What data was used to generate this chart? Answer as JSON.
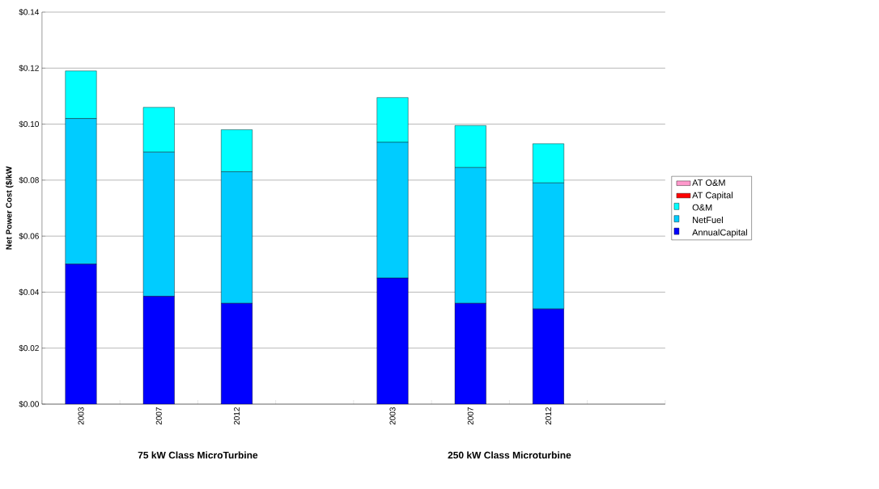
{
  "chart_data": {
    "type": "bar",
    "stacked": true,
    "ylabel": "Net Power Cost ($/kW",
    "categories": [
      "2003",
      "2007",
      "2012",
      null,
      "2003",
      "2007",
      "2012",
      null
    ],
    "series": [
      {
        "name": "AnnualCapital",
        "color": "#0000ff",
        "values": [
          0.05,
          0.0385,
          0.036,
          null,
          0.045,
          0.036,
          0.034,
          null
        ]
      },
      {
        "name": "NetFuel",
        "color": "#00ccff",
        "values": [
          0.052,
          0.0515,
          0.047,
          null,
          0.0485,
          0.0485,
          0.045,
          null
        ]
      },
      {
        "name": "O&M",
        "color": "#00ffff",
        "values": [
          0.017,
          0.016,
          0.015,
          null,
          0.016,
          0.015,
          0.014,
          null
        ]
      },
      {
        "name": "AT Capital",
        "color": "#ff0000",
        "values": [
          null,
          null,
          null,
          null,
          null,
          null,
          null,
          null
        ]
      },
      {
        "name": "AT O&M",
        "color": "#ff99cc",
        "values": [
          null,
          null,
          null,
          null,
          null,
          null,
          null,
          null
        ]
      }
    ],
    "ylim": [
      0,
      0.14
    ],
    "yticks": [
      {
        "value": 0,
        "label": "$0.00"
      },
      {
        "value": 0.02,
        "label": "$0.02"
      },
      {
        "value": 0.04,
        "label": "$0.04"
      },
      {
        "value": 0.06,
        "label": "$0.06"
      },
      {
        "value": 0.08,
        "label": "$0.08"
      },
      {
        "value": 0.1,
        "label": "$0.10"
      },
      {
        "value": 0.12,
        "label": "$0.12"
      },
      {
        "value": 0.14,
        "label": "$0.14"
      }
    ],
    "grid": "y",
    "legend": "right",
    "annotations": [
      "75 kW Class MicroTurbine",
      "250 kW Class Microturbine"
    ]
  }
}
